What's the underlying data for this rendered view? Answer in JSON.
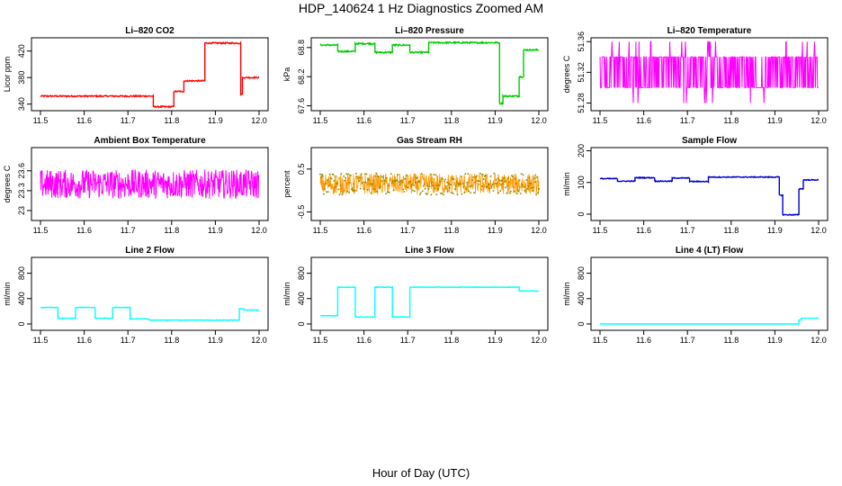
{
  "figure": {
    "title": "HDP_140624  1 Hz Diagnostics Zoomed AM",
    "xlabel": "Hour of Day (UTC)"
  },
  "chart_data": [
    {
      "type": "line",
      "title": "Li–820 CO2",
      "xlabel": "",
      "ylabel": "Licor ppm",
      "color": "#ff0000",
      "xlim": [
        11.5,
        12.0
      ],
      "ylim": [
        330,
        440
      ],
      "xticks": [
        "11.5",
        "11.6",
        "11.7",
        "11.8",
        "11.9",
        "12.0"
      ],
      "yticks": [
        340,
        380,
        420
      ],
      "x": [
        11.5,
        11.758,
        11.758,
        11.805,
        11.805,
        11.828,
        11.828,
        11.876,
        11.876,
        11.958,
        11.958,
        11.962,
        11.962,
        12.0
      ],
      "y": [
        352,
        352,
        336,
        336,
        359,
        359,
        375,
        375,
        432,
        432,
        355,
        355,
        380,
        380
      ],
      "noise": 1
    },
    {
      "type": "line",
      "title": "Li–820 Pressure",
      "xlabel": "",
      "ylabel": "kPa",
      "color": "#00cc00",
      "xlim": [
        11.5,
        12.0
      ],
      "ylim": [
        67.5,
        69.0
      ],
      "xticks": [
        "11.5",
        "11.6",
        "11.7",
        "11.8",
        "11.9",
        "12.0"
      ],
      "yticks": [
        67.6,
        68.2,
        68.8
      ],
      "x": [
        11.5,
        11.54,
        11.54,
        11.58,
        11.58,
        11.625,
        11.625,
        11.665,
        11.665,
        11.705,
        11.705,
        11.748,
        11.748,
        11.91,
        11.91,
        11.918,
        11.918,
        11.955,
        11.955,
        11.965,
        11.965,
        12.0
      ],
      "y": [
        68.85,
        68.85,
        68.72,
        68.72,
        68.88,
        68.88,
        68.7,
        68.7,
        68.85,
        68.85,
        68.7,
        68.7,
        68.9,
        68.9,
        67.65,
        67.65,
        67.8,
        67.8,
        68.2,
        68.2,
        68.75,
        68.75
      ],
      "noise": 0.015
    },
    {
      "type": "line",
      "title": "Li–820 Temperature",
      "xlabel": "",
      "ylabel": "degrees C",
      "color": "#ff00ff",
      "xlim": [
        11.5,
        12.0
      ],
      "ylim": [
        51.27,
        51.365
      ],
      "xticks": [
        "11.5",
        "11.6",
        "11.7",
        "11.8",
        "11.9",
        "12.0"
      ],
      "yticks": [
        51.28,
        51.32,
        51.36
      ],
      "x": [
        11.5,
        12.0
      ],
      "y": [
        51.32,
        51.32
      ],
      "switch": [
        51.3,
        51.34
      ],
      "spikes": [
        51.28,
        51.36
      ]
    },
    {
      "type": "line",
      "title": "Ambient Box Temperature",
      "xlabel": "",
      "ylabel": "degrees C",
      "color": "#ff00ff",
      "xlim": [
        11.5,
        12.0
      ],
      "ylim": [
        22.85,
        23.95
      ],
      "xticks": [
        "11.5",
        "11.6",
        "11.7",
        "11.8",
        "11.9",
        "12.0"
      ],
      "yticks": [
        23.0,
        23.3,
        23.6
      ],
      "x": [
        11.5,
        12.0
      ],
      "y": [
        23.4,
        23.4
      ],
      "noise": 0.22
    },
    {
      "type": "scatter",
      "title": "Gas Stream RH",
      "xlabel": "",
      "ylabel": "percent",
      "color": "#ff9900",
      "xlim": [
        11.5,
        12.0
      ],
      "ylim": [
        -0.7,
        1.0
      ],
      "xticks": [
        "11.5",
        "11.6",
        "11.7",
        "11.8",
        "11.9",
        "12.0"
      ],
      "yticks": [
        -0.5,
        0.5
      ],
      "x": [
        11.5,
        12.0
      ],
      "y": [
        0.15,
        0.15
      ],
      "noise": 0.25
    },
    {
      "type": "line",
      "title": "Sample Flow",
      "xlabel": "",
      "ylabel": "ml/min",
      "color": "#0000cc",
      "xlim": [
        11.5,
        12.0
      ],
      "ylim": [
        -20,
        210
      ],
      "xticks": [
        "11.5",
        "11.6",
        "11.7",
        "11.8",
        "11.9",
        "12.0"
      ],
      "yticks": [
        0,
        100,
        200
      ],
      "x": [
        11.5,
        11.54,
        11.54,
        11.58,
        11.58,
        11.625,
        11.625,
        11.665,
        11.665,
        11.705,
        11.705,
        11.748,
        11.748,
        11.91,
        11.91,
        11.918,
        11.918,
        11.955,
        11.955,
        11.965,
        11.965,
        12.0
      ],
      "y": [
        112,
        112,
        104,
        104,
        115,
        115,
        104,
        104,
        114,
        114,
        103,
        103,
        117,
        117,
        60,
        60,
        -2,
        -2,
        80,
        80,
        108,
        108
      ],
      "noise": 1.5
    },
    {
      "type": "line",
      "title": "Line 2 Flow",
      "xlabel": "",
      "ylabel": "ml/min",
      "color": "#00ffff",
      "xlim": [
        11.5,
        12.0
      ],
      "ylim": [
        -100,
        1050
      ],
      "xticks": [
        "11.5",
        "11.6",
        "11.7",
        "11.8",
        "11.9",
        "12.0"
      ],
      "yticks": [
        0,
        400,
        800
      ],
      "x": [
        11.5,
        11.54,
        11.54,
        11.58,
        11.58,
        11.625,
        11.625,
        11.665,
        11.665,
        11.705,
        11.705,
        11.748,
        11.748,
        11.955,
        11.955,
        11.965,
        11.965,
        12.0
      ],
      "y": [
        260,
        260,
        90,
        90,
        260,
        260,
        90,
        90,
        260,
        260,
        80,
        80,
        60,
        60,
        240,
        240,
        220,
        220
      ],
      "noise": 4
    },
    {
      "type": "line",
      "title": "Line 3 Flow",
      "xlabel": "",
      "ylabel": "ml/min",
      "color": "#00ffff",
      "xlim": [
        11.5,
        12.0
      ],
      "ylim": [
        -100,
        1050
      ],
      "xticks": [
        "11.5",
        "11.6",
        "11.7",
        "11.8",
        "11.9",
        "12.0"
      ],
      "yticks": [
        0,
        400,
        800
      ],
      "x": [
        11.5,
        11.54,
        11.54,
        11.58,
        11.58,
        11.625,
        11.625,
        11.665,
        11.665,
        11.705,
        11.705,
        11.955,
        11.955,
        12.0
      ],
      "y": [
        130,
        130,
        580,
        580,
        110,
        110,
        580,
        580,
        110,
        110,
        580,
        580,
        520,
        520
      ],
      "noise": 4
    },
    {
      "type": "line",
      "title": "Line 4 (LT) Flow",
      "xlabel": "",
      "ylabel": "ml/min",
      "color": "#00ffff",
      "xlim": [
        11.5,
        12.0
      ],
      "ylim": [
        -100,
        1050
      ],
      "xticks": [
        "11.5",
        "11.6",
        "11.7",
        "11.8",
        "11.9",
        "12.0"
      ],
      "yticks": [
        0,
        400,
        800
      ],
      "x": [
        11.5,
        11.955,
        11.955,
        11.96,
        11.96,
        12.0
      ],
      "y": [
        0,
        0,
        60,
        60,
        90,
        90
      ],
      "noise": 0
    }
  ]
}
